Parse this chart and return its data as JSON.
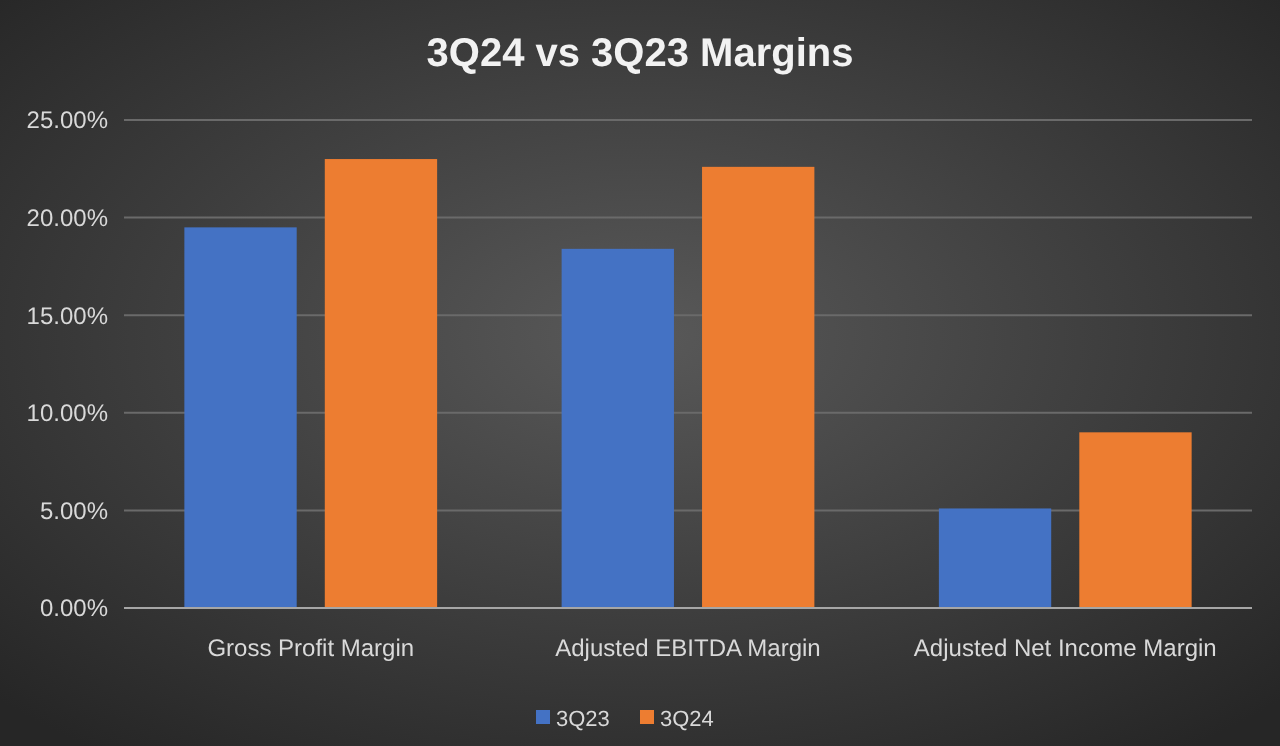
{
  "chart_data": {
    "type": "bar",
    "title": "3Q24 vs 3Q23 Margins",
    "categories": [
      "Gross Profit Margin",
      "Adjusted EBITDA Margin",
      "Adjusted Net Income Margin"
    ],
    "series": [
      {
        "name": "3Q23",
        "color": "#4472c4",
        "values": [
          19.5,
          18.4,
          5.1
        ]
      },
      {
        "name": "3Q24",
        "color": "#ed7d31",
        "values": [
          23.0,
          22.6,
          9.0
        ]
      }
    ],
    "ylim": [
      0,
      25
    ],
    "yticks": [
      {
        "value": 0,
        "label": "0.00%"
      },
      {
        "value": 5,
        "label": "5.00%"
      },
      {
        "value": 10,
        "label": "10.00%"
      },
      {
        "value": 15,
        "label": "15.00%"
      },
      {
        "value": 20,
        "label": "20.00%"
      },
      {
        "value": 25,
        "label": "25.00%"
      }
    ],
    "grid": "y",
    "legend": "bottom"
  }
}
